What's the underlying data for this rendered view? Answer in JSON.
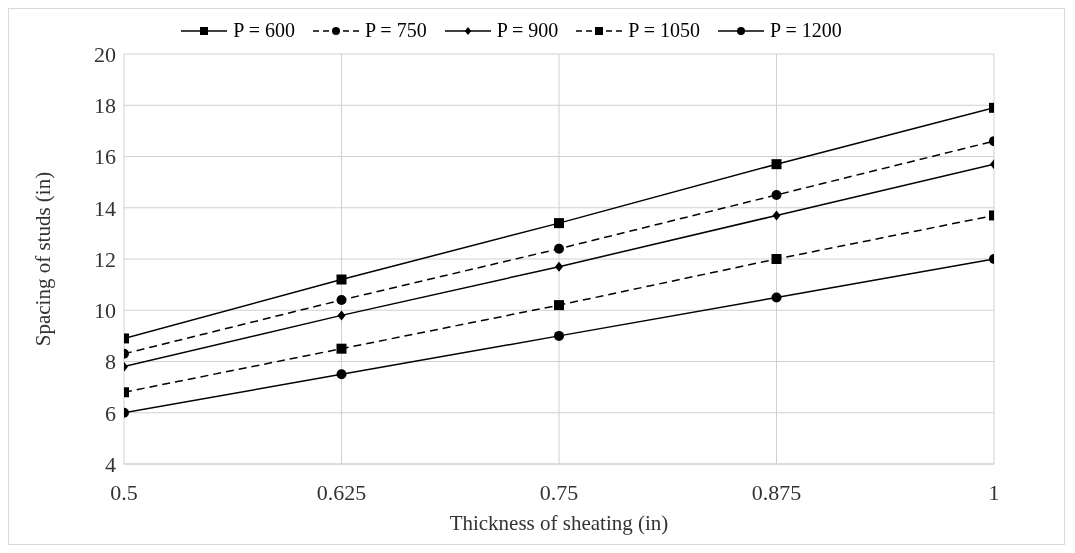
{
  "chart_data": {
    "type": "line",
    "xlabel": "Thickness  of sheating  (in)",
    "ylabel": "Spacing  of studs  (in)",
    "x": [
      0.5,
      0.625,
      0.75,
      0.875,
      1
    ],
    "xlim": [
      0.5,
      1
    ],
    "xticks": [
      0.5,
      0.625,
      0.75,
      0.875,
      1
    ],
    "ylim": [
      4,
      20
    ],
    "yticks": [
      4,
      6,
      8,
      10,
      12,
      14,
      16,
      18,
      20
    ],
    "grid": true,
    "legend": "top",
    "series": [
      {
        "name": "P = 600",
        "color": "#000000",
        "marker": "square",
        "line_style": "solid",
        "values": [
          8.9,
          11.2,
          13.4,
          15.7,
          17.9
        ]
      },
      {
        "name": "P = 750",
        "color": "#000000",
        "marker": "circle",
        "line_style": "dashed",
        "values": [
          8.3,
          10.4,
          12.4,
          14.5,
          16.6
        ]
      },
      {
        "name": "P = 900",
        "color": "#000000",
        "marker": "diamond",
        "line_style": "solid",
        "values": [
          7.8,
          9.8,
          11.7,
          13.7,
          15.7
        ]
      },
      {
        "name": "P = 1050",
        "color": "#000000",
        "marker": "square",
        "line_style": "dashed",
        "values": [
          6.8,
          8.5,
          10.2,
          12.0,
          13.7
        ]
      },
      {
        "name": "P = 1200",
        "color": "#000000",
        "marker": "circle",
        "line_style": "solid",
        "values": [
          6.0,
          7.5,
          9.0,
          10.5,
          12.0
        ]
      }
    ]
  }
}
